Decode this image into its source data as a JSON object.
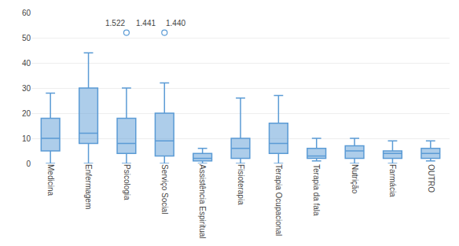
{
  "chart_data": {
    "type": "box",
    "categories": [
      "Medicina",
      "Enfermagem",
      "Psicologia",
      "Serviço Social",
      "Assistência Espiritual",
      "Fisioterapia",
      "Terapia Ocupacional",
      "Terapia da fala",
      "Nutrição",
      "Farmácia",
      "OUTRO"
    ],
    "q1": [
      5,
      8,
      4,
      3,
      1,
      2,
      4,
      2,
      2,
      2,
      2
    ],
    "median": [
      10,
      12,
      8,
      9,
      2,
      6,
      8,
      3,
      5,
      4,
      4
    ],
    "q3": [
      18,
      30,
      18,
      20,
      4,
      10,
      16,
      6,
      7,
      5,
      6
    ],
    "lower_whisker": [
      0,
      0,
      0,
      0,
      0,
      0,
      0,
      1,
      0,
      0,
      1
    ],
    "upper_whisker": [
      28,
      44,
      30,
      32,
      6,
      26,
      27,
      10,
      10,
      9,
      9
    ],
    "fliers": [
      [],
      [],
      [
        52
      ],
      [
        52
      ],
      [],
      [],
      [],
      [],
      [],
      [],
      []
    ],
    "annotations": [
      {
        "text": "1.522",
        "categories": [
          "Psicologia"
        ],
        "y": 52
      },
      {
        "text": "1.441",
        "categories": [
          "Psicologia",
          "Serviço Social"
        ],
        "y": 52
      },
      {
        "text": "1.440",
        "categories": [
          "Serviço Social"
        ],
        "y": 52
      }
    ],
    "color": "#5B9BD5",
    "ylim": [
      0,
      60
    ],
    "yticks": [
      0,
      10,
      20,
      30,
      40,
      50,
      60
    ],
    "grid": true
  }
}
